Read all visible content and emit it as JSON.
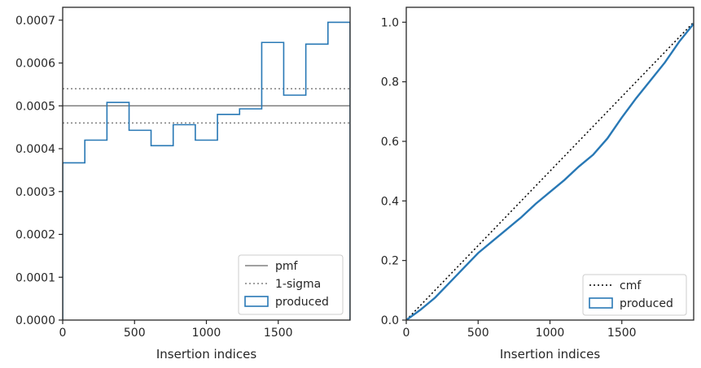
{
  "chart_data": [
    {
      "type": "line",
      "panel": "left",
      "xlabel": "Insertion indices",
      "ylabel": "",
      "xlim": [
        0,
        2000
      ],
      "ylim": [
        0,
        0.00073
      ],
      "xticks": [
        0,
        500,
        1000,
        1500
      ],
      "yticks": [
        0,
        0.0001,
        0.0002,
        0.0003,
        0.0004,
        0.0005,
        0.0006,
        0.0007
      ],
      "ytick_labels": [
        "0.0000",
        "0.0001",
        "0.0002",
        "0.0003",
        "0.0004",
        "0.0005",
        "0.0006",
        "0.0007"
      ],
      "grid": false,
      "legend_position": "lower-right",
      "pmf": {
        "name": "pmf",
        "value": 0.0005,
        "color": "#808080"
      },
      "sigma": {
        "name": "1-sigma",
        "values": [
          0.00046,
          0.00054
        ],
        "color": "#808080"
      },
      "histogram": {
        "name": "produced",
        "color": "#2878b5",
        "bin_edges": [
          0,
          154,
          308,
          462,
          615,
          769,
          923,
          1077,
          1231,
          1385,
          1538,
          1692,
          1846,
          2000
        ],
        "values": [
          0.000367,
          0.00042,
          0.000508,
          0.000443,
          0.000407,
          0.000456,
          0.00042,
          0.00048,
          0.000493,
          0.000648,
          0.000525,
          0.000644,
          0.000695
        ]
      }
    },
    {
      "type": "line",
      "panel": "right",
      "xlabel": "Insertion indices",
      "ylabel": "",
      "xlim": [
        0,
        2000
      ],
      "ylim": [
        0,
        1.05
      ],
      "xticks": [
        0,
        500,
        1000,
        1500
      ],
      "yticks": [
        0,
        0.2,
        0.4,
        0.6,
        0.8,
        1.0
      ],
      "ytick_labels": [
        "0.0",
        "0.2",
        "0.4",
        "0.6",
        "0.8",
        "1.0"
      ],
      "grid": false,
      "legend_position": "lower-right",
      "cmf": {
        "name": "cmf",
        "x": [
          0,
          2000
        ],
        "y": [
          0,
          1.0
        ],
        "color": "#000000"
      },
      "produced": {
        "name": "produced",
        "color": "#2878b5",
        "x": [
          0,
          100,
          200,
          300,
          400,
          500,
          600,
          700,
          800,
          900,
          1000,
          1100,
          1200,
          1300,
          1400,
          1500,
          1600,
          1700,
          1800,
          1900,
          2000
        ],
        "y": [
          0,
          0.035,
          0.075,
          0.125,
          0.175,
          0.225,
          0.265,
          0.305,
          0.345,
          0.39,
          0.43,
          0.47,
          0.515,
          0.555,
          0.61,
          0.68,
          0.745,
          0.805,
          0.865,
          0.935,
          0.995
        ]
      }
    }
  ]
}
